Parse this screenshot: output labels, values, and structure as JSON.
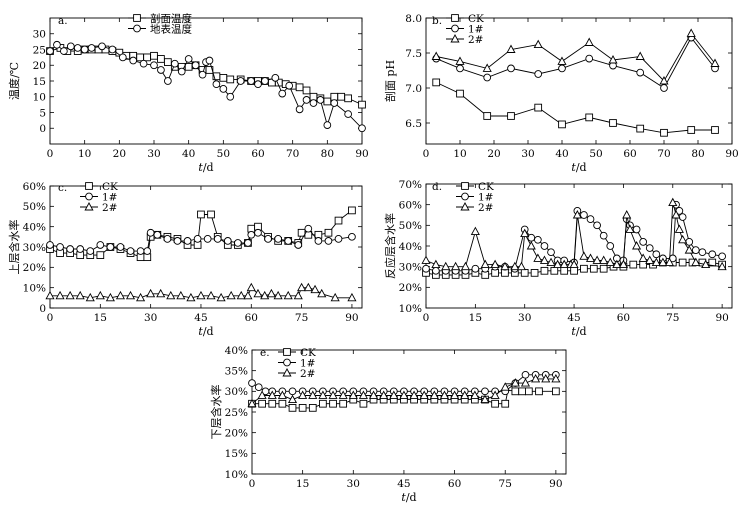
{
  "figure": {
    "panels": [
      "a",
      "b",
      "c",
      "d",
      "e"
    ]
  },
  "chart_data": [
    {
      "id": "a",
      "type": "line",
      "panel_label": "a.",
      "ylabel": "温度/℃",
      "xlabel": "t/d",
      "xlim": [
        0,
        90
      ],
      "ylim": [
        -5,
        35
      ],
      "xticks": [
        0,
        10,
        20,
        30,
        40,
        50,
        60,
        70,
        80,
        90
      ],
      "yticks": [
        0,
        5,
        10,
        15,
        20,
        25,
        30
      ],
      "ytick_labels": [
        "0",
        "5",
        "10",
        "15",
        "20",
        "25",
        "30"
      ],
      "legend_position": "top-right",
      "series": [
        {
          "name": "剖面温度",
          "marker": "square",
          "x": [
            0,
            3,
            5,
            8,
            10,
            12,
            14,
            16,
            18,
            20,
            22,
            24,
            26,
            28,
            30,
            32,
            34,
            36,
            38,
            40,
            42,
            44,
            46,
            48,
            50,
            52,
            55,
            58,
            60,
            62,
            64,
            66,
            68,
            70,
            72,
            74,
            76,
            78,
            80,
            82,
            84,
            86,
            90
          ],
          "y": [
            24.5,
            25.5,
            24.5,
            24.5,
            25,
            25,
            25,
            25,
            24.5,
            24,
            23,
            23,
            22.5,
            22.5,
            23,
            22,
            21,
            19.5,
            19.5,
            19.5,
            20,
            18.5,
            18.5,
            16.5,
            16,
            15.5,
            15.5,
            15,
            15,
            15,
            14.5,
            14.5,
            14,
            13.5,
            13,
            12,
            10,
            9.5,
            8.5,
            10,
            10,
            9.5,
            7.5
          ]
        },
        {
          "name": "地表温度",
          "marker": "circle",
          "x": [
            0,
            2,
            4,
            6,
            8,
            10,
            12,
            15,
            18,
            21,
            24,
            27,
            30,
            32,
            34,
            36,
            38,
            40,
            42,
            44,
            45,
            46,
            48,
            50,
            52,
            55,
            58,
            60,
            62,
            65,
            67,
            69,
            72,
            74,
            76,
            78,
            80,
            82,
            86,
            90
          ],
          "y": [
            24.5,
            26.5,
            24.5,
            26,
            25.5,
            25,
            25.5,
            26,
            25,
            22.5,
            21.5,
            20.5,
            20,
            18.5,
            15,
            20.5,
            18,
            22,
            20,
            17,
            21,
            21.5,
            14,
            12.5,
            10,
            15,
            15,
            14,
            15,
            16,
            11,
            13.5,
            6,
            9,
            8,
            9,
            1,
            8,
            4.5,
            0
          ]
        }
      ]
    },
    {
      "id": "b",
      "type": "line",
      "panel_label": "b.",
      "ylabel": "剖面 pH",
      "xlabel": "t/d",
      "xlim": [
        0,
        90
      ],
      "ylim": [
        6.2,
        8.0
      ],
      "xticks": [
        0,
        10,
        20,
        30,
        40,
        50,
        60,
        70,
        80,
        90
      ],
      "yticks": [
        6.5,
        7.0,
        7.5,
        8.0
      ],
      "ytick_labels": [
        "6.5",
        "7.0",
        "7.5",
        "8.0"
      ],
      "legend_position": "top-left",
      "series": [
        {
          "name": "CK",
          "marker": "square",
          "x": [
            3,
            10,
            18,
            25,
            33,
            40,
            48,
            55,
            63,
            70,
            78,
            85
          ],
          "y": [
            7.08,
            6.92,
            6.6,
            6.6,
            6.72,
            6.48,
            6.58,
            6.5,
            6.42,
            6.36,
            6.4,
            6.4
          ]
        },
        {
          "name": "1#",
          "marker": "circle",
          "x": [
            3,
            10,
            18,
            25,
            33,
            40,
            48,
            55,
            63,
            70,
            78,
            85
          ],
          "y": [
            7.42,
            7.28,
            7.15,
            7.28,
            7.2,
            7.28,
            7.42,
            7.32,
            7.22,
            7.0,
            7.72,
            7.28
          ]
        },
        {
          "name": "2#",
          "marker": "triangle",
          "x": [
            3,
            10,
            18,
            25,
            33,
            40,
            48,
            55,
            63,
            70,
            78,
            85
          ],
          "y": [
            7.45,
            7.38,
            7.28,
            7.55,
            7.62,
            7.38,
            7.65,
            7.4,
            7.45,
            7.1,
            7.78,
            7.35
          ]
        }
      ]
    },
    {
      "id": "c",
      "type": "line",
      "panel_label": "c.",
      "ylabel": "上层含水率",
      "xlabel": "t/d",
      "xlim": [
        0,
        93
      ],
      "ylim": [
        0,
        60
      ],
      "xticks": [
        0,
        15,
        30,
        45,
        60,
        75,
        90
      ],
      "yticks": [
        0,
        10,
        20,
        30,
        40,
        50,
        60
      ],
      "ytick_labels": [
        "0",
        "10%",
        "20%",
        "30%",
        "40%",
        "50%",
        "60%"
      ],
      "legend_position": "top-left",
      "series": [
        {
          "name": "CK",
          "marker": "square",
          "x": [
            0,
            3,
            6,
            9,
            12,
            15,
            18,
            21,
            24,
            27,
            29,
            30,
            32,
            35,
            38,
            41,
            44,
            45,
            48,
            50,
            53,
            56,
            59,
            60,
            62,
            65,
            68,
            71,
            74,
            75,
            77,
            80,
            83,
            86,
            90
          ],
          "y": [
            29,
            27,
            27,
            26,
            26,
            26,
            30,
            29,
            27,
            25,
            25,
            35,
            36,
            35,
            34,
            31,
            31,
            46,
            46,
            35,
            31,
            31,
            32,
            39,
            40,
            35,
            33,
            33,
            32,
            37,
            36,
            36,
            37,
            43,
            48
          ]
        },
        {
          "name": "1#",
          "marker": "circle",
          "x": [
            0,
            3,
            6,
            9,
            12,
            15,
            18,
            21,
            24,
            27,
            29,
            30,
            32,
            35,
            38,
            41,
            44,
            47,
            50,
            53,
            56,
            59,
            60,
            62,
            65,
            68,
            71,
            74,
            77,
            80,
            83,
            86,
            90
          ],
          "y": [
            31,
            30,
            29,
            29,
            28,
            31,
            30,
            30,
            28,
            28,
            28,
            37,
            36,
            34,
            33,
            33,
            34,
            34,
            34,
            33,
            32,
            32,
            36,
            37,
            34,
            34,
            33,
            31,
            39,
            33,
            33,
            34,
            35
          ]
        },
        {
          "name": "2#",
          "marker": "triangle",
          "x": [
            0,
            3,
            6,
            9,
            12,
            15,
            18,
            21,
            24,
            27,
            30,
            33,
            36,
            39,
            42,
            45,
            48,
            51,
            54,
            57,
            59,
            60,
            62,
            64,
            66,
            68,
            71,
            74,
            75,
            77,
            79,
            81,
            85,
            90
          ],
          "y": [
            6,
            6,
            6,
            6,
            5,
            6,
            5,
            6,
            6,
            5,
            7,
            7,
            6,
            6,
            5,
            6,
            6,
            5,
            6,
            6,
            6,
            10,
            7,
            6,
            7,
            6,
            6,
            6,
            10,
            10,
            9,
            7,
            5,
            5
          ]
        }
      ]
    },
    {
      "id": "d",
      "type": "line",
      "panel_label": "d.",
      "ylabel": "反应层含水率",
      "xlabel": "t/d",
      "xlim": [
        0,
        93
      ],
      "ylim": [
        10,
        70
      ],
      "xticks": [
        0,
        15,
        30,
        45,
        60,
        75,
        90
      ],
      "yticks": [
        10,
        20,
        30,
        40,
        50,
        60,
        70
      ],
      "ytick_labels": [
        "10%",
        "20%",
        "30%",
        "40%",
        "50%",
        "60%",
        "70%"
      ],
      "legend_position": "top-center",
      "series": [
        {
          "name": "CK",
          "marker": "square",
          "x": [
            0,
            3,
            6,
            9,
            12,
            15,
            18,
            21,
            24,
            27,
            30,
            33,
            36,
            39,
            42,
            45,
            48,
            51,
            54,
            57,
            60,
            63,
            66,
            69,
            72,
            75,
            78,
            81,
            84,
            87,
            90
          ],
          "y": [
            27,
            26,
            26,
            26,
            26,
            27,
            26,
            27,
            27,
            27,
            27,
            27,
            28,
            28,
            28,
            28,
            29,
            29,
            29,
            30,
            30,
            31,
            31,
            31,
            32,
            32,
            32,
            32,
            32,
            32,
            31
          ]
        },
        {
          "name": "1#",
          "marker": "circle",
          "x": [
            0,
            3,
            6,
            9,
            12,
            15,
            18,
            21,
            24,
            27,
            30,
            32,
            34,
            36,
            38,
            40,
            42,
            45,
            46,
            48,
            50,
            52,
            54,
            56,
            58,
            60,
            61,
            62,
            64,
            66,
            68,
            70,
            72,
            75,
            76,
            77,
            78,
            80,
            82,
            84,
            87,
            90
          ],
          "y": [
            29,
            28,
            28,
            28,
            28,
            29,
            29,
            30,
            30,
            29,
            48,
            44,
            43,
            40,
            37,
            33,
            33,
            32,
            57,
            55,
            53,
            50,
            45,
            40,
            34,
            33,
            53,
            50,
            48,
            42,
            39,
            36,
            34,
            34,
            60,
            57,
            54,
            42,
            38,
            37,
            36,
            35
          ]
        },
        {
          "name": "2#",
          "marker": "triangle",
          "x": [
            0,
            3,
            6,
            9,
            12,
            15,
            18,
            21,
            24,
            27,
            29,
            30,
            32,
            34,
            36,
            38,
            40,
            42,
            44,
            45,
            46,
            48,
            50,
            52,
            54,
            56,
            58,
            60,
            61,
            62,
            64,
            66,
            68,
            70,
            72,
            74,
            75,
            76,
            77,
            78,
            80,
            82,
            85,
            90
          ],
          "y": [
            33,
            31,
            30,
            30,
            30,
            47,
            31,
            31,
            30,
            30,
            30,
            46,
            40,
            34,
            33,
            32,
            31,
            31,
            31,
            31,
            55,
            35,
            34,
            33,
            33,
            32,
            31,
            31,
            55,
            48,
            40,
            34,
            33,
            32,
            32,
            32,
            61,
            55,
            48,
            43,
            38,
            32,
            31,
            30
          ]
        }
      ]
    },
    {
      "id": "e",
      "type": "line",
      "panel_label": "e.",
      "ylabel": "下层含水率",
      "xlabel": "t/d",
      "xlim": [
        0,
        93
      ],
      "ylim": [
        10,
        40
      ],
      "xticks": [
        0,
        15,
        30,
        45,
        60,
        75,
        90
      ],
      "yticks": [
        10,
        15,
        20,
        25,
        30,
        35,
        40
      ],
      "ytick_labels": [
        "10%",
        "15%",
        "20%",
        "25%",
        "30%",
        "35%",
        "40%"
      ],
      "legend_position": "top-left",
      "series": [
        {
          "name": "CK",
          "marker": "square",
          "x": [
            0,
            3,
            6,
            9,
            12,
            15,
            18,
            21,
            24,
            27,
            30,
            33,
            36,
            39,
            42,
            45,
            48,
            51,
            54,
            57,
            60,
            63,
            66,
            69,
            72,
            75,
            76,
            78,
            80,
            82,
            85,
            90
          ],
          "y": [
            27,
            27,
            27,
            27,
            26,
            26,
            26,
            27,
            27,
            27,
            28,
            27,
            28,
            28,
            28,
            28,
            28,
            28,
            28,
            28,
            28,
            28,
            28,
            28,
            27,
            27,
            31,
            30,
            30,
            30,
            30,
            30
          ]
        },
        {
          "name": "1#",
          "marker": "circle",
          "x": [
            0,
            2,
            4,
            6,
            9,
            12,
            15,
            18,
            21,
            24,
            27,
            30,
            33,
            36,
            39,
            42,
            45,
            48,
            51,
            54,
            57,
            60,
            63,
            66,
            69,
            72,
            75,
            78,
            81,
            84,
            87,
            90
          ],
          "y": [
            32,
            31,
            30,
            30,
            30,
            30,
            30,
            30,
            30,
            30,
            30,
            30,
            30,
            30,
            30,
            30,
            30,
            30,
            30,
            30,
            30,
            30,
            30,
            30,
            30,
            30,
            30,
            32,
            34,
            34,
            34,
            34
          ]
        },
        {
          "name": "2#",
          "marker": "triangle",
          "x": [
            0,
            3,
            6,
            9,
            12,
            15,
            18,
            21,
            24,
            27,
            30,
            33,
            36,
            39,
            42,
            45,
            48,
            51,
            54,
            57,
            60,
            63,
            66,
            69,
            72,
            75,
            78,
            81,
            84,
            87,
            90
          ],
          "y": [
            27,
            29,
            29,
            29,
            28,
            29,
            29,
            29,
            29,
            29,
            29,
            29,
            29,
            29,
            29,
            29,
            29,
            29,
            29,
            29,
            29,
            29,
            29,
            28,
            29,
            31,
            32,
            32,
            33,
            33,
            33
          ]
        }
      ]
    }
  ]
}
